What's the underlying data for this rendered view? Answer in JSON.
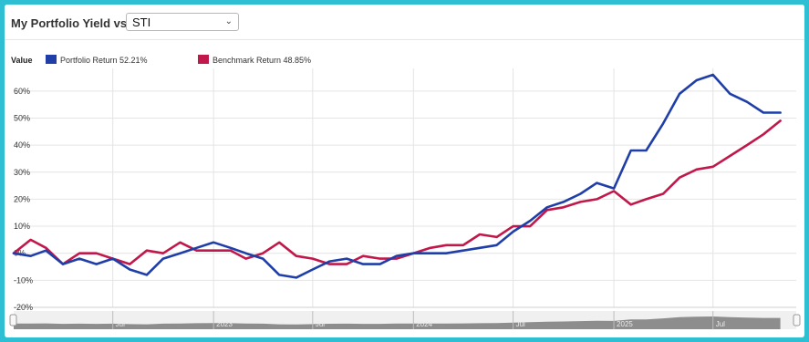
{
  "header": {
    "title": "My Portfolio Yield vs",
    "benchmark_select": {
      "value": "STI"
    }
  },
  "legend": {
    "label": "Value",
    "items": [
      {
        "name": "Portfolio Return 52.21%",
        "color": "#1f3ea8"
      },
      {
        "name": "Benchmark Return 48.85%",
        "color": "#c0184a"
      }
    ]
  },
  "icons": {
    "select_arrow": "chevron-down-icon"
  },
  "chart_data": {
    "type": "line",
    "ylabel": "",
    "y_ticks": [
      "60%",
      "50%",
      "40%",
      "30%",
      "20%",
      "10%",
      "0%",
      "-10%",
      "-20%"
    ],
    "y_tick_values": [
      60,
      50,
      40,
      30,
      20,
      10,
      0,
      -10,
      -20
    ],
    "ylim": [
      -20,
      65
    ],
    "x_tick_labels": [
      "Jul",
      "2023",
      "Jul",
      "2024",
      "Jul",
      "2025",
      "Jul"
    ],
    "x_tick_dates": [
      "2022-07-01",
      "2023-01-01",
      "2023-07-01",
      "2024-01-01",
      "2024-07-01",
      "2025-01-01",
      "2025-07-01"
    ],
    "xlim": [
      "2022-01-01",
      "2025-11-30"
    ],
    "grid": true,
    "legend_position": "top-left",
    "series": [
      {
        "name": "Portfolio Return 52.21%",
        "color": "#1f3ea8",
        "x": [
          "2022-01-01",
          "2022-02-01",
          "2022-03-01",
          "2022-04-01",
          "2022-05-01",
          "2022-06-01",
          "2022-07-01",
          "2022-08-01",
          "2022-09-01",
          "2022-10-01",
          "2022-11-01",
          "2022-12-01",
          "2023-01-01",
          "2023-02-01",
          "2023-03-01",
          "2023-04-01",
          "2023-05-01",
          "2023-06-01",
          "2023-07-01",
          "2023-08-01",
          "2023-09-01",
          "2023-10-01",
          "2023-11-01",
          "2023-12-01",
          "2024-01-01",
          "2024-02-01",
          "2024-03-01",
          "2024-04-01",
          "2024-05-01",
          "2024-06-01",
          "2024-07-01",
          "2024-08-01",
          "2024-09-01",
          "2024-10-01",
          "2024-11-01",
          "2024-12-01",
          "2025-01-01",
          "2025-02-01",
          "2025-03-01",
          "2025-04-01",
          "2025-05-01",
          "2025-06-01",
          "2025-07-01",
          "2025-08-01",
          "2025-09-01",
          "2025-10-01",
          "2025-11-01"
        ],
        "y": [
          0,
          -1,
          1,
          -4,
          -2,
          -4,
          -2,
          -6,
          -8,
          -2,
          0,
          2,
          4,
          2,
          0,
          -2,
          -8,
          -9,
          -6,
          -3,
          -2,
          -4,
          -4,
          -1,
          0,
          0,
          0,
          1,
          2,
          3,
          8,
          12,
          17,
          19,
          22,
          26,
          24,
          38,
          38,
          48,
          59,
          64,
          66,
          59,
          56,
          52,
          52
        ]
      },
      {
        "name": "Benchmark Return 48.85%",
        "color": "#c0184a",
        "x": [
          "2022-01-01",
          "2022-02-01",
          "2022-03-01",
          "2022-04-01",
          "2022-05-01",
          "2022-06-01",
          "2022-07-01",
          "2022-08-01",
          "2022-09-01",
          "2022-10-01",
          "2022-11-01",
          "2022-12-01",
          "2023-01-01",
          "2023-02-01",
          "2023-03-01",
          "2023-04-01",
          "2023-05-01",
          "2023-06-01",
          "2023-07-01",
          "2023-08-01",
          "2023-09-01",
          "2023-10-01",
          "2023-11-01",
          "2023-12-01",
          "2024-01-01",
          "2024-02-01",
          "2024-03-01",
          "2024-04-01",
          "2024-05-01",
          "2024-06-01",
          "2024-07-01",
          "2024-08-01",
          "2024-09-01",
          "2024-10-01",
          "2024-11-01",
          "2024-12-01",
          "2025-01-01",
          "2025-02-01",
          "2025-03-01",
          "2025-04-01",
          "2025-05-01",
          "2025-06-01",
          "2025-07-01",
          "2025-08-01",
          "2025-09-01",
          "2025-10-01",
          "2025-11-01"
        ],
        "y": [
          0,
          5,
          2,
          -4,
          0,
          0,
          -2,
          -4,
          1,
          0,
          4,
          1,
          1,
          1,
          -2,
          0,
          4,
          -1,
          -2,
          -4,
          -4,
          -1,
          -2,
          -2,
          0,
          2,
          3,
          3,
          7,
          6,
          10,
          10,
          16,
          17,
          19,
          20,
          23,
          18,
          20,
          22,
          28,
          31,
          32,
          36,
          40,
          44,
          49
        ]
      }
    ]
  }
}
